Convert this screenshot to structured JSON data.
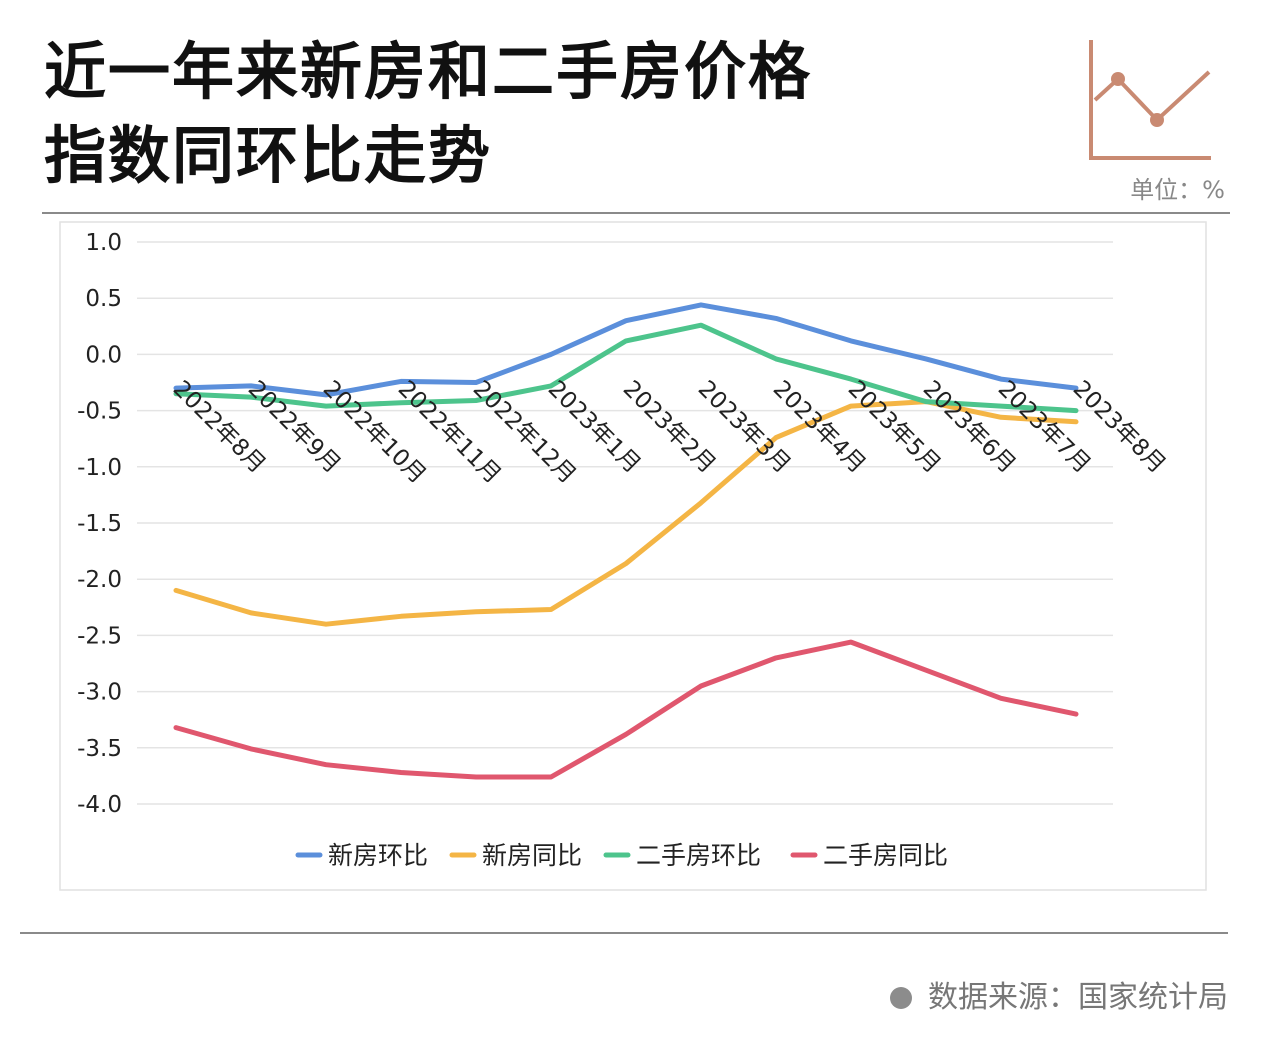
{
  "header": {
    "title_line1": "近一年来新房和二手房价格",
    "title_line2": "指数同环比走势",
    "unit": "单位：%"
  },
  "footer": {
    "source": "数据来源：国家统计局"
  },
  "colors": {
    "new_mom": "#5b8fdb",
    "new_yoy": "#f4b545",
    "used_mom": "#4dc48c",
    "used_yoy": "#e0576e",
    "accent": "#c98a72"
  },
  "icons": [
    "line-chart-icon",
    "bullet-dot-icon"
  ],
  "chart_data": {
    "type": "line",
    "title": "",
    "xlabel": "",
    "ylabel": "",
    "categories": [
      "2022年8月",
      "2022年9月",
      "2022年10月",
      "2022年11月",
      "2022年12月",
      "2023年1月",
      "2023年2月",
      "2023年3月",
      "2023年4月",
      "2023年5月",
      "2023年6月",
      "2023年7月",
      "2023年8月"
    ],
    "ylim": [
      -4.0,
      1.0
    ],
    "yticks": [
      "1.0",
      "0.5",
      "0.0",
      "-0.5",
      "-1.0",
      "-1.5",
      "-2.0",
      "-2.5",
      "-3.0",
      "-3.5",
      "-4.0"
    ],
    "grid": true,
    "legend": "bottom",
    "series": [
      {
        "name": "新房环比",
        "color": "#5b8fdb",
        "values": [
          -0.3,
          -0.28,
          -0.36,
          -0.24,
          -0.25,
          0.0,
          0.3,
          0.44,
          0.32,
          0.12,
          -0.04,
          -0.22,
          -0.3
        ]
      },
      {
        "name": "新房同比",
        "color": "#f4b545",
        "values": [
          -2.1,
          -2.3,
          -2.4,
          -2.33,
          -2.29,
          -2.27,
          -1.86,
          -1.32,
          -0.74,
          -0.46,
          -0.42,
          -0.56,
          -0.6
        ]
      },
      {
        "name": "二手房环比",
        "color": "#4dc48c",
        "values": [
          -0.35,
          -0.38,
          -0.46,
          -0.43,
          -0.41,
          -0.28,
          0.12,
          0.26,
          -0.04,
          -0.22,
          -0.42,
          -0.46,
          -0.5
        ]
      },
      {
        "name": "二手房同比",
        "color": "#e0576e",
        "values": [
          -3.32,
          -3.51,
          -3.65,
          -3.72,
          -3.76,
          -3.76,
          -3.38,
          -2.95,
          -2.7,
          -2.56,
          -2.81,
          -3.06,
          -3.2
        ]
      }
    ]
  }
}
